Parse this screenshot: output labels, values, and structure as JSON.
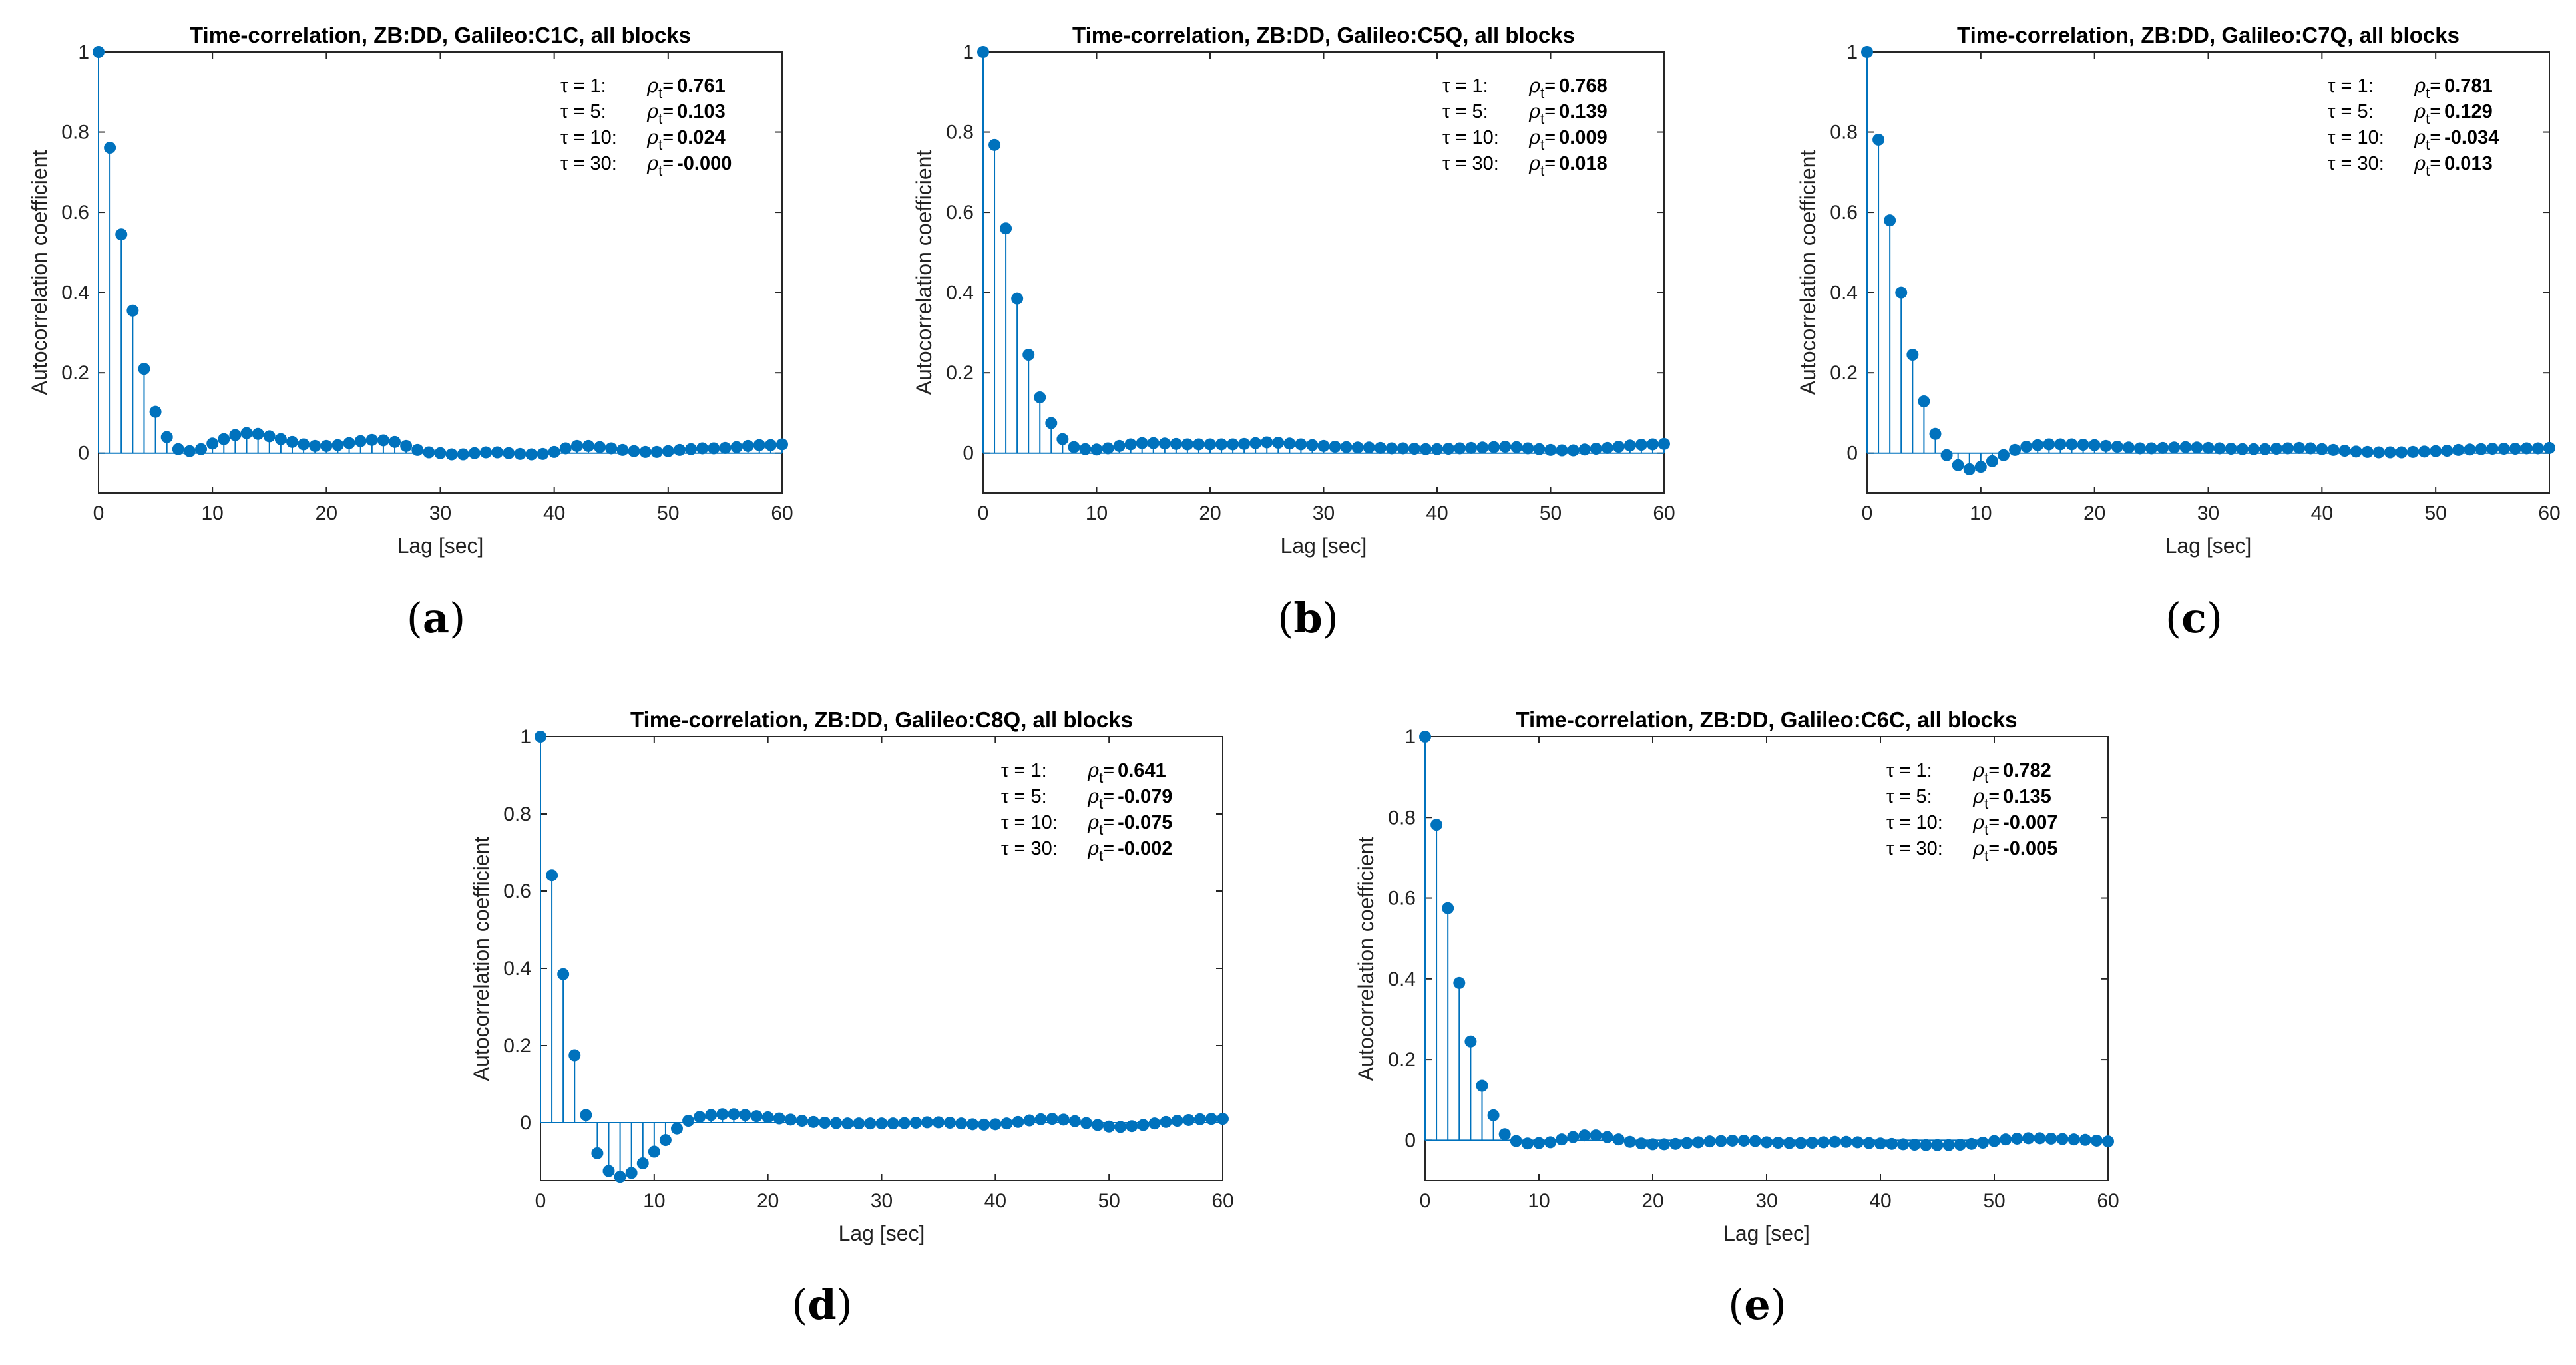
{
  "caption_labels": [
    "a",
    "b",
    "c",
    "d",
    "e"
  ],
  "chart_data": [
    {
      "type": "stem",
      "panel": "a",
      "title": "Time-correlation, ZB:DD, Galileo:C1C, all blocks",
      "xlabel": "Lag [sec]",
      "ylabel": "Autocorrelation coefficient",
      "xlim": [
        0,
        60
      ],
      "ylim": [
        -0.1,
        1
      ],
      "xticks": [
        "0",
        "10",
        "20",
        "30",
        "40",
        "50",
        "60"
      ],
      "yticks": [
        "0",
        "0.2",
        "0.4",
        "0.6",
        "0.8",
        "1"
      ],
      "annotations": [
        {
          "tau": "τ = 1:",
          "rho_label": "ρ",
          "rho_sub": "t",
          "eq": "=",
          "value": "0.761"
        },
        {
          "tau": "τ = 5:",
          "rho_label": "ρ",
          "rho_sub": "t",
          "eq": "=",
          "value": "0.103"
        },
        {
          "tau": "τ = 10:",
          "rho_label": "ρ",
          "rho_sub": "t",
          "eq": "=",
          "value": "0.024"
        },
        {
          "tau": "τ = 30:",
          "rho_label": "ρ",
          "rho_sub": "t",
          "eq": "=",
          "value": "-0.000"
        }
      ],
      "lags": [
        0,
        1,
        2,
        3,
        4,
        5,
        6,
        7,
        8,
        9,
        10,
        11,
        12,
        13,
        14,
        15,
        16,
        17,
        18,
        19,
        20,
        21,
        22,
        23,
        24,
        25,
        26,
        27,
        28,
        29,
        30,
        31,
        32,
        33,
        34,
        35,
        36,
        37,
        38,
        39,
        40,
        41,
        42,
        43,
        44,
        45,
        46,
        47,
        48,
        49,
        50,
        51,
        52,
        53,
        54,
        55,
        56,
        57,
        58,
        59,
        60
      ],
      "values": [
        1,
        0.761,
        0.545,
        0.355,
        0.21,
        0.103,
        0.04,
        0.01,
        0.005,
        0.01,
        0.024,
        0.035,
        0.045,
        0.05,
        0.048,
        0.042,
        0.035,
        0.028,
        0.022,
        0.018,
        0.018,
        0.02,
        0.025,
        0.03,
        0.033,
        0.032,
        0.028,
        0.018,
        0.008,
        0.002,
        0,
        -0.003,
        -0.003,
        0,
        0.002,
        0.002,
        0,
        -0.002,
        -0.003,
        -0.002,
        0.003,
        0.012,
        0.018,
        0.018,
        0.015,
        0.012,
        0.008,
        0.005,
        0.003,
        0.003,
        0.005,
        0.008,
        0.01,
        0.012,
        0.012,
        0.013,
        0.015,
        0.018,
        0.02,
        0.02,
        0.022
      ]
    },
    {
      "type": "stem",
      "panel": "b",
      "title": "Time-correlation, ZB:DD, Galileo:C5Q, all blocks",
      "xlabel": "Lag [sec]",
      "ylabel": "Autocorrelation coefficient",
      "xlim": [
        0,
        60
      ],
      "ylim": [
        -0.1,
        1
      ],
      "xticks": [
        "0",
        "10",
        "20",
        "30",
        "40",
        "50",
        "60"
      ],
      "yticks": [
        "0",
        "0.2",
        "0.4",
        "0.6",
        "0.8",
        "1"
      ],
      "annotations": [
        {
          "tau": "τ = 1:",
          "rho_label": "ρ",
          "rho_sub": "t",
          "eq": "=",
          "value": "0.768"
        },
        {
          "tau": "τ = 5:",
          "rho_label": "ρ",
          "rho_sub": "t",
          "eq": "=",
          "value": "0.139"
        },
        {
          "tau": "τ = 10:",
          "rho_label": "ρ",
          "rho_sub": "t",
          "eq": "=",
          "value": "0.009"
        },
        {
          "tau": "τ = 30:",
          "rho_label": "ρ",
          "rho_sub": "t",
          "eq": "=",
          "value": "0.018"
        }
      ],
      "lags": [
        0,
        1,
        2,
        3,
        4,
        5,
        6,
        7,
        8,
        9,
        10,
        11,
        12,
        13,
        14,
        15,
        16,
        17,
        18,
        19,
        20,
        21,
        22,
        23,
        24,
        25,
        26,
        27,
        28,
        29,
        30,
        31,
        32,
        33,
        34,
        35,
        36,
        37,
        38,
        39,
        40,
        41,
        42,
        43,
        44,
        45,
        46,
        47,
        48,
        49,
        50,
        51,
        52,
        53,
        54,
        55,
        56,
        57,
        58,
        59,
        60
      ],
      "values": [
        1,
        0.768,
        0.56,
        0.385,
        0.245,
        0.139,
        0.075,
        0.035,
        0.015,
        0.01,
        0.009,
        0.012,
        0.018,
        0.022,
        0.025,
        0.025,
        0.024,
        0.023,
        0.022,
        0.022,
        0.022,
        0.022,
        0.022,
        0.023,
        0.025,
        0.027,
        0.026,
        0.024,
        0.022,
        0.02,
        0.018,
        0.016,
        0.015,
        0.014,
        0.014,
        0.013,
        0.012,
        0.012,
        0.011,
        0.01,
        0.01,
        0.011,
        0.012,
        0.013,
        0.014,
        0.015,
        0.016,
        0.015,
        0.012,
        0.01,
        0.008,
        0.007,
        0.007,
        0.009,
        0.011,
        0.013,
        0.016,
        0.019,
        0.021,
        0.022,
        0.023
      ]
    },
    {
      "type": "stem",
      "panel": "c",
      "title": "Time-correlation, ZB:DD, Galileo:C7Q, all blocks",
      "xlabel": "Lag [sec]",
      "ylabel": "Autocorrelation coefficient",
      "xlim": [
        0,
        60
      ],
      "ylim": [
        -0.1,
        1
      ],
      "xticks": [
        "0",
        "10",
        "20",
        "30",
        "40",
        "50",
        "60"
      ],
      "yticks": [
        "0",
        "0.2",
        "0.4",
        "0.6",
        "0.8",
        "1"
      ],
      "annotations": [
        {
          "tau": "τ = 1:",
          "rho_label": "ρ",
          "rho_sub": "t",
          "eq": "=",
          "value": "0.781"
        },
        {
          "tau": "τ = 5:",
          "rho_label": "ρ",
          "rho_sub": "t",
          "eq": "=",
          "value": "0.129"
        },
        {
          "tau": "τ = 10:",
          "rho_label": "ρ",
          "rho_sub": "t",
          "eq": "=",
          "value": "-0.034"
        },
        {
          "tau": "τ = 30:",
          "rho_label": "ρ",
          "rho_sub": "t",
          "eq": "=",
          "value": "0.013"
        }
      ],
      "lags": [
        0,
        1,
        2,
        3,
        4,
        5,
        6,
        7,
        8,
        9,
        10,
        11,
        12,
        13,
        14,
        15,
        16,
        17,
        18,
        19,
        20,
        21,
        22,
        23,
        24,
        25,
        26,
        27,
        28,
        29,
        30,
        31,
        32,
        33,
        34,
        35,
        36,
        37,
        38,
        39,
        40,
        41,
        42,
        43,
        44,
        45,
        46,
        47,
        48,
        49,
        50,
        51,
        52,
        53,
        54,
        55,
        56,
        57,
        58,
        59,
        60
      ],
      "values": [
        1,
        0.781,
        0.58,
        0.4,
        0.245,
        0.129,
        0.048,
        -0.005,
        -0.03,
        -0.04,
        -0.034,
        -0.02,
        -0.005,
        0.008,
        0.016,
        0.02,
        0.022,
        0.022,
        0.022,
        0.021,
        0.02,
        0.018,
        0.016,
        0.014,
        0.012,
        0.012,
        0.013,
        0.014,
        0.015,
        0.014,
        0.013,
        0.012,
        0.011,
        0.01,
        0.01,
        0.01,
        0.011,
        0.012,
        0.013,
        0.012,
        0.01,
        0.008,
        0.006,
        0.004,
        0.003,
        0.002,
        0.002,
        0.002,
        0.003,
        0.004,
        0.005,
        0.006,
        0.008,
        0.009,
        0.01,
        0.011,
        0.011,
        0.011,
        0.012,
        0.012,
        0.013
      ]
    },
    {
      "type": "stem",
      "panel": "d",
      "title": "Time-correlation, ZB:DD, Galileo:C8Q, all blocks",
      "xlabel": "Lag [sec]",
      "ylabel": "Autocorrelation coefficient",
      "xlim": [
        0,
        60
      ],
      "ylim": [
        -0.15,
        1
      ],
      "xticks": [
        "0",
        "10",
        "20",
        "30",
        "40",
        "50",
        "60"
      ],
      "yticks": [
        "0",
        "0.2",
        "0.4",
        "0.6",
        "0.8",
        "1"
      ],
      "annotations": [
        {
          "tau": "τ = 1:",
          "rho_label": "ρ",
          "rho_sub": "t",
          "eq": "=",
          "value": "0.641"
        },
        {
          "tau": "τ = 5:",
          "rho_label": "ρ",
          "rho_sub": "t",
          "eq": "=",
          "value": "-0.079"
        },
        {
          "tau": "τ = 10:",
          "rho_label": "ρ",
          "rho_sub": "t",
          "eq": "=",
          "value": "-0.075"
        },
        {
          "tau": "τ = 30:",
          "rho_label": "ρ",
          "rho_sub": "t",
          "eq": "=",
          "value": "-0.002"
        }
      ],
      "lags": [
        0,
        1,
        2,
        3,
        4,
        5,
        6,
        7,
        8,
        9,
        10,
        11,
        12,
        13,
        14,
        15,
        16,
        17,
        18,
        19,
        20,
        21,
        22,
        23,
        24,
        25,
        26,
        27,
        28,
        29,
        30,
        31,
        32,
        33,
        34,
        35,
        36,
        37,
        38,
        39,
        40,
        41,
        42,
        43,
        44,
        45,
        46,
        47,
        48,
        49,
        50,
        51,
        52,
        53,
        54,
        55,
        56,
        57,
        58,
        59,
        60
      ],
      "values": [
        1,
        0.641,
        0.385,
        0.175,
        0.02,
        -0.079,
        -0.125,
        -0.14,
        -0.13,
        -0.105,
        -0.075,
        -0.045,
        -0.015,
        0.005,
        0.015,
        0.02,
        0.022,
        0.022,
        0.02,
        0.017,
        0.014,
        0.011,
        0.008,
        0.005,
        0.002,
        0,
        -0.001,
        -0.002,
        -0.002,
        -0.002,
        -0.002,
        -0.002,
        -0.001,
        0,
        0.001,
        0.001,
        0,
        -0.002,
        -0.004,
        -0.005,
        -0.004,
        -0.002,
        0.002,
        0.006,
        0.009,
        0.01,
        0.008,
        0.004,
        -0.001,
        -0.006,
        -0.01,
        -0.011,
        -0.009,
        -0.006,
        -0.002,
        0.002,
        0.005,
        0.007,
        0.009,
        0.01,
        0.01
      ]
    },
    {
      "type": "stem",
      "panel": "e",
      "title": "Time-correlation, ZB:DD, Galileo:C6C, all blocks",
      "xlabel": "Lag [sec]",
      "ylabel": "Autocorrelation coefficient",
      "xlim": [
        0,
        60
      ],
      "ylim": [
        -0.1,
        1
      ],
      "xticks": [
        "0",
        "10",
        "20",
        "30",
        "40",
        "50",
        "60"
      ],
      "yticks": [
        "0",
        "0.2",
        "0.4",
        "0.6",
        "0.8",
        "1"
      ],
      "annotations": [
        {
          "tau": "τ = 1:",
          "rho_label": "ρ",
          "rho_sub": "t",
          "eq": "=",
          "value": "0.782"
        },
        {
          "tau": "τ = 5:",
          "rho_label": "ρ",
          "rho_sub": "t",
          "eq": "=",
          "value": "0.135"
        },
        {
          "tau": "τ = 10:",
          "rho_label": "ρ",
          "rho_sub": "t",
          "eq": "=",
          "value": "-0.007"
        },
        {
          "tau": "τ = 30:",
          "rho_label": "ρ",
          "rho_sub": "t",
          "eq": "=",
          "value": "-0.005"
        }
      ],
      "lags": [
        0,
        1,
        2,
        3,
        4,
        5,
        6,
        7,
        8,
        9,
        10,
        11,
        12,
        13,
        14,
        15,
        16,
        17,
        18,
        19,
        20,
        21,
        22,
        23,
        24,
        25,
        26,
        27,
        28,
        29,
        30,
        31,
        32,
        33,
        34,
        35,
        36,
        37,
        38,
        39,
        40,
        41,
        42,
        43,
        44,
        45,
        46,
        47,
        48,
        49,
        50,
        51,
        52,
        53,
        54,
        55,
        56,
        57,
        58,
        59,
        60
      ],
      "values": [
        1,
        0.782,
        0.575,
        0.39,
        0.245,
        0.135,
        0.062,
        0.015,
        -0.002,
        -0.008,
        -0.007,
        -0.005,
        0.002,
        0.008,
        0.012,
        0.012,
        0.008,
        0.002,
        -0.004,
        -0.008,
        -0.01,
        -0.01,
        -0.009,
        -0.007,
        -0.005,
        -0.003,
        -0.002,
        -0.001,
        -0.001,
        -0.002,
        -0.005,
        -0.006,
        -0.007,
        -0.007,
        -0.006,
        -0.005,
        -0.004,
        -0.004,
        -0.005,
        -0.007,
        -0.008,
        -0.009,
        -0.01,
        -0.011,
        -0.012,
        -0.012,
        -0.012,
        -0.011,
        -0.009,
        -0.006,
        -0.002,
        0.002,
        0.004,
        0.005,
        0.005,
        0.004,
        0.003,
        0.002,
        0.001,
        -0.001,
        -0.003
      ]
    }
  ]
}
